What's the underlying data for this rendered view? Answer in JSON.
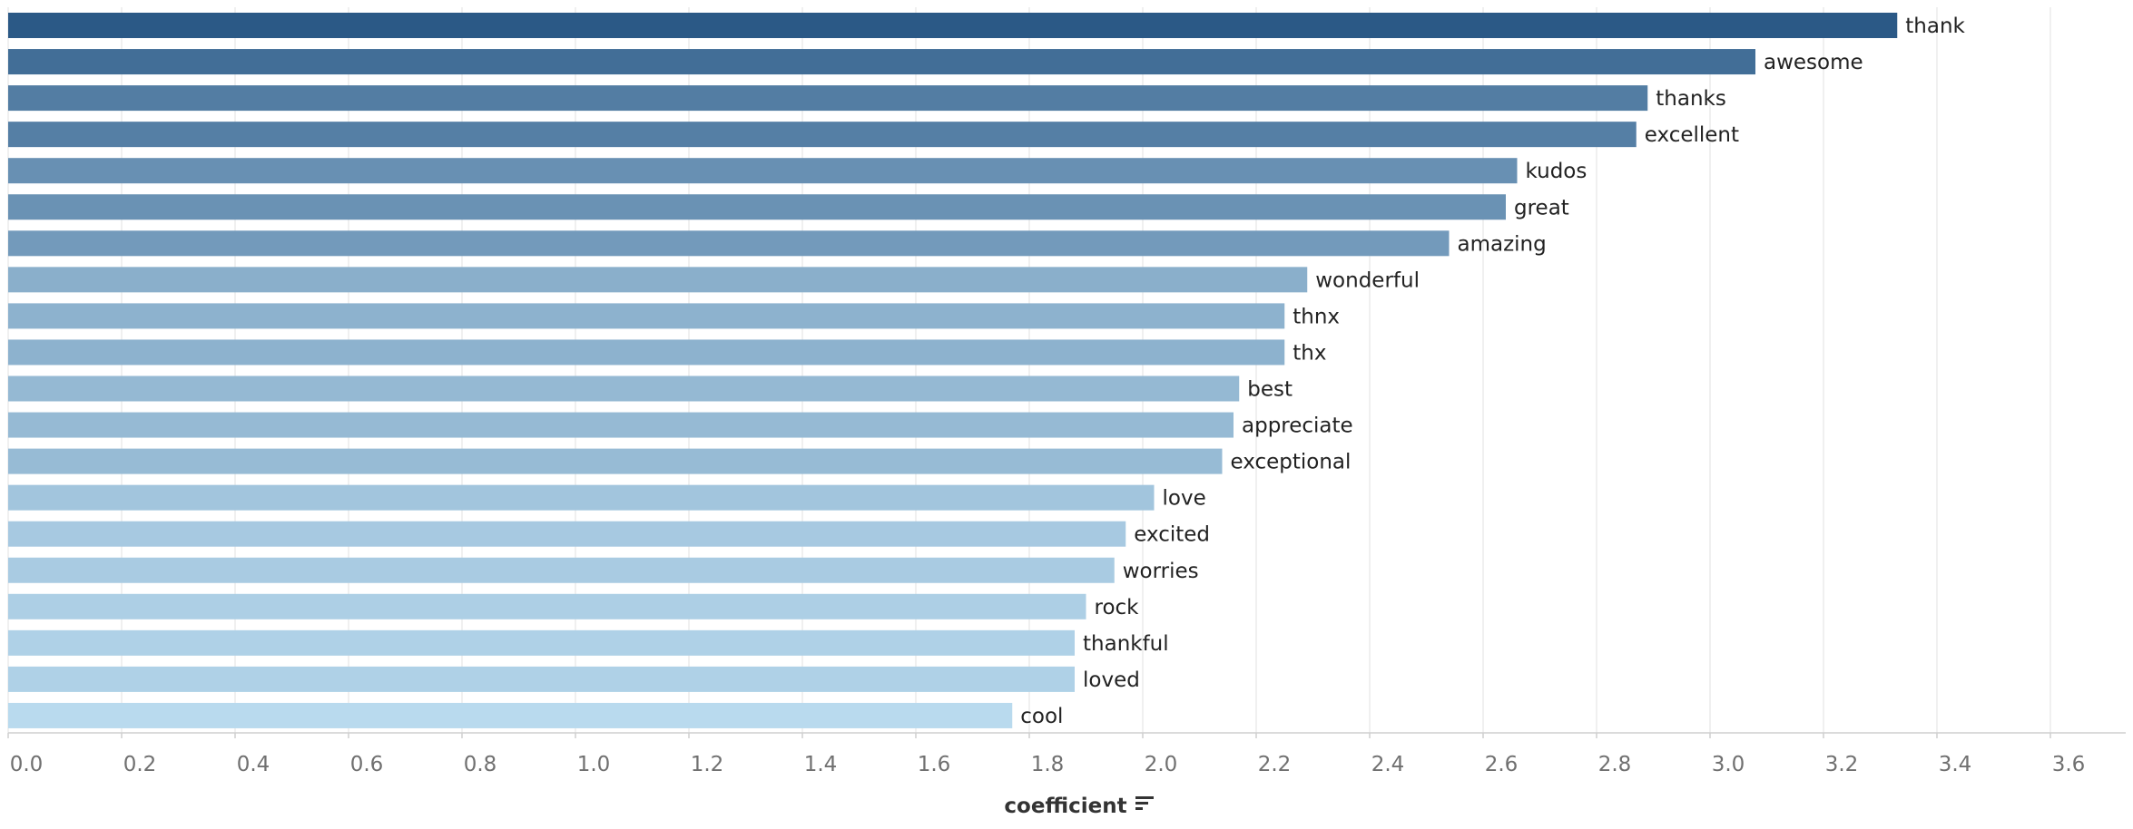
{
  "chart_data": {
    "type": "bar",
    "orientation": "horizontal",
    "title": "",
    "xlabel": "coefficient",
    "ylabel": "",
    "xlim": [
      0,
      3.75
    ],
    "x_ticks": [
      0.0,
      0.2,
      0.4,
      0.6,
      0.8,
      1.0,
      1.2,
      1.4,
      1.6,
      1.8,
      2.0,
      2.2,
      2.4,
      2.6,
      2.8,
      3.0,
      3.2,
      3.4,
      3.6
    ],
    "x_tick_labels": [
      "0.0",
      "0.2",
      "0.4",
      "0.6",
      "0.8",
      "1.0",
      "1.2",
      "1.4",
      "1.6",
      "1.8",
      "2.0",
      "2.2",
      "2.4",
      "2.6",
      "2.8",
      "3.0",
      "3.2",
      "3.4",
      "3.6"
    ],
    "grid": true,
    "sorted": "descending",
    "sort_icon": "sort-descending-icon",
    "color_scale": [
      "#b9daee",
      "#2b5986"
    ],
    "categories": [
      "thank",
      "awesome",
      "thanks",
      "excellent",
      "kudos",
      "great",
      "amazing",
      "wonderful",
      "thnx",
      "thx",
      "best",
      "appreciate",
      "exceptional",
      "love",
      "excited",
      "worries",
      "rock",
      "thankful",
      "loved",
      "cool"
    ],
    "values": [
      3.33,
      3.08,
      2.89,
      2.87,
      2.66,
      2.64,
      2.54,
      2.29,
      2.25,
      2.25,
      2.17,
      2.16,
      2.14,
      2.02,
      1.97,
      1.95,
      1.9,
      1.88,
      1.88,
      1.77
    ]
  }
}
